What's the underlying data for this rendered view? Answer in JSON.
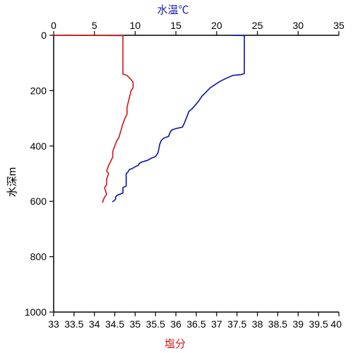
{
  "chart_data": {
    "type": "line",
    "grid": false,
    "legend": "none",
    "y_axis": {
      "label": "水深m",
      "range": [
        0,
        1000
      ],
      "inverted": true,
      "ticks": [
        0,
        200,
        400,
        600,
        800,
        1000
      ],
      "tick_labels": [
        "0",
        "200",
        "400",
        "600",
        "800",
        "1000"
      ]
    },
    "top_axis": {
      "label": "水温℃",
      "color": "#1a1aa8",
      "range": [
        0,
        35
      ],
      "ticks": [
        0,
        5,
        10,
        15,
        20,
        25,
        30,
        35
      ],
      "tick_labels": [
        "0",
        "5",
        "10",
        "15",
        "20",
        "25",
        "30",
        "35"
      ]
    },
    "bottom_axis": {
      "label": "塩分",
      "color": "#c81e1e",
      "range": [
        33,
        40
      ],
      "ticks": [
        33,
        33.5,
        34,
        34.5,
        35,
        35.5,
        36,
        36.5,
        37,
        37.5,
        38,
        38.5,
        39,
        39.5,
        40
      ],
      "tick_labels": [
        "33",
        "33.5",
        "34",
        "34.5",
        "35",
        "35.5",
        "36",
        "36.5",
        "37",
        "37.5",
        "38",
        "38.5",
        "39",
        "39.5",
        "40"
      ]
    },
    "series": [
      {
        "axis": "top",
        "color": "#0a14aa",
        "points": [
          [
            22,
            0
          ],
          [
            23.4,
            1
          ],
          [
            23.4,
            100
          ],
          [
            23.4,
            138
          ],
          [
            23.0,
            142
          ],
          [
            22.0,
            145
          ],
          [
            21.2,
            155
          ],
          [
            20.5,
            165
          ],
          [
            19.8,
            178
          ],
          [
            19.2,
            190
          ],
          [
            18.7,
            205
          ],
          [
            18.2,
            220
          ],
          [
            17.8,
            237
          ],
          [
            17.4,
            252
          ],
          [
            17.0,
            265
          ],
          [
            16.6,
            275
          ],
          [
            16.4,
            290
          ],
          [
            16.2,
            305
          ],
          [
            16.0,
            320
          ],
          [
            15.8,
            332
          ],
          [
            15.0,
            337
          ],
          [
            14.5,
            342
          ],
          [
            14.3,
            350
          ],
          [
            14.1,
            365
          ],
          [
            13.5,
            372
          ],
          [
            13.2,
            380
          ],
          [
            13.0,
            395
          ],
          [
            12.9,
            412
          ],
          [
            12.8,
            425
          ],
          [
            12.5,
            438
          ],
          [
            12.0,
            444
          ],
          [
            11.5,
            452
          ],
          [
            10.8,
            458
          ],
          [
            10.5,
            463
          ],
          [
            10.4,
            470
          ],
          [
            10.0,
            475
          ],
          [
            9.6,
            482
          ],
          [
            9.3,
            485
          ],
          [
            9.1,
            495
          ],
          [
            8.9,
            500
          ],
          [
            8.9,
            530
          ],
          [
            8.9,
            545
          ],
          [
            8.5,
            550
          ],
          [
            8.5,
            570
          ],
          [
            7.8,
            578
          ],
          [
            7.6,
            585
          ],
          [
            7.6,
            592
          ],
          [
            7.4,
            598
          ],
          [
            7.2,
            602
          ]
        ]
      },
      {
        "axis": "bottom",
        "color": "#d21414",
        "points": [
          [
            33,
            0
          ],
          [
            34.7,
            1
          ],
          [
            34.7,
            100
          ],
          [
            34.7,
            140
          ],
          [
            34.8,
            145
          ],
          [
            34.9,
            160
          ],
          [
            34.95,
            170
          ],
          [
            34.95,
            190
          ],
          [
            34.9,
            200
          ],
          [
            34.85,
            230
          ],
          [
            34.8,
            260
          ],
          [
            34.8,
            285
          ],
          [
            34.75,
            300
          ],
          [
            34.7,
            320
          ],
          [
            34.65,
            345
          ],
          [
            34.6,
            370
          ],
          [
            34.55,
            380
          ],
          [
            34.5,
            400
          ],
          [
            34.45,
            420
          ],
          [
            34.45,
            440
          ],
          [
            34.4,
            455
          ],
          [
            34.35,
            470
          ],
          [
            34.3,
            490
          ],
          [
            34.35,
            500
          ],
          [
            34.3,
            520
          ],
          [
            34.3,
            540
          ],
          [
            34.25,
            550
          ],
          [
            34.3,
            575
          ],
          [
            34.25,
            585
          ],
          [
            34.22,
            595
          ],
          [
            34.2,
            605
          ]
        ]
      }
    ]
  }
}
